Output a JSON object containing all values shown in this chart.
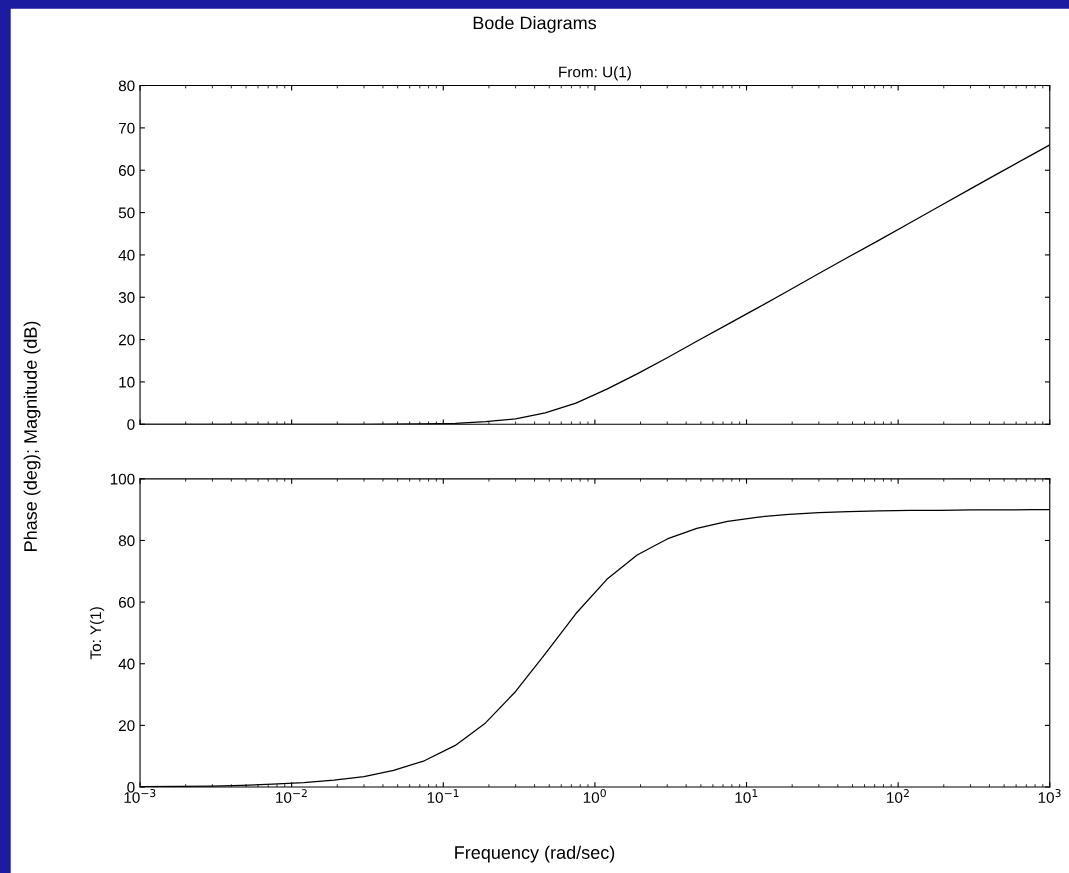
{
  "chart_data": [
    {
      "type": "line",
      "title": "From: U(1)",
      "ylabel": "Phase (deg); Magnitude (dB)",
      "annotations": [
        "Bode Diagrams"
      ],
      "log": "x",
      "tick_labels": "y",
      "grid": false,
      "marker": "none",
      "line_style": "solid",
      "x": [
        0.001,
        0.003,
        0.012,
        0.03,
        0.047,
        0.075,
        0.12,
        0.19,
        0.3,
        0.47,
        0.75,
        1.2,
        1.9,
        3,
        4.7,
        7.5,
        12,
        19,
        30,
        47,
        75,
        120,
        190,
        300,
        470,
        750,
        1000
      ],
      "series": [
        {
          "color": "#000000",
          "values": [
            0,
            0,
            0,
            0,
            0.04,
            0.1,
            0.24,
            0.6,
            1.3,
            2.7,
            5,
            8.3,
            11.9,
            15.7,
            19.6,
            23.6,
            27.6,
            31.6,
            35.6,
            39.5,
            43.5,
            47.6,
            51.6,
            55.6,
            59.5,
            63.5,
            66
          ]
        }
      ],
      "xlim": [
        0.001,
        1000
      ],
      "xticks": [
        {
          "value": 0.001,
          "label": null
        },
        {
          "value": 0.01,
          "label": null
        },
        {
          "value": 0.1,
          "label": null
        },
        {
          "value": 1,
          "label": null
        },
        {
          "value": 10,
          "label": null
        },
        {
          "value": 100,
          "label": null
        },
        {
          "value": 1000,
          "label": null
        }
      ],
      "ylim": [
        0,
        80
      ],
      "yticks": [
        0,
        10,
        20,
        30,
        40,
        50,
        60,
        70,
        80
      ]
    },
    {
      "type": "line",
      "xlabel": "Frequency (rad/sec)",
      "ylabel": "To: Y(1)",
      "log": "x",
      "grid": false,
      "marker": "none",
      "line_style": "solid",
      "x": [
        0.001,
        0.0019,
        0.003,
        0.0047,
        0.0075,
        0.012,
        0.019,
        0.03,
        0.047,
        0.075,
        0.12,
        0.19,
        0.3,
        0.47,
        0.75,
        1.2,
        1.9,
        3,
        4.7,
        7.5,
        12,
        19,
        30,
        47,
        75,
        120,
        190,
        300,
        470,
        750,
        1000
      ],
      "series": [
        {
          "color": "#000000",
          "values": [
            0.1,
            0.2,
            0.3,
            0.5,
            0.9,
            1.4,
            2.2,
            3.4,
            5.4,
            8.5,
            13.5,
            20.8,
            31,
            43.2,
            56.3,
            67.4,
            75.3,
            80.5,
            83.9,
            86.2,
            87.6,
            88.5,
            89,
            89.4,
            89.6,
            89.8,
            89.8,
            89.9,
            89.9,
            90,
            90
          ]
        }
      ],
      "xlim": [
        0.001,
        1000
      ],
      "xticks": [
        {
          "value": 0.001,
          "label": "10$^{−3}$"
        },
        {
          "value": 0.01,
          "label": "10$^{−2}$"
        },
        {
          "value": 0.1,
          "label": "10$^{−1}$"
        },
        {
          "value": 1,
          "label": "10$^{0}$"
        },
        {
          "value": 10,
          "label": "10$^{1}$"
        },
        {
          "value": 100,
          "label": "10$^{2}$"
        },
        {
          "value": 1000,
          "label": "10$^{3}$"
        }
      ],
      "ylim": [
        0,
        100
      ],
      "yticks": [
        0,
        20,
        40,
        60,
        80,
        100
      ]
    }
  ]
}
